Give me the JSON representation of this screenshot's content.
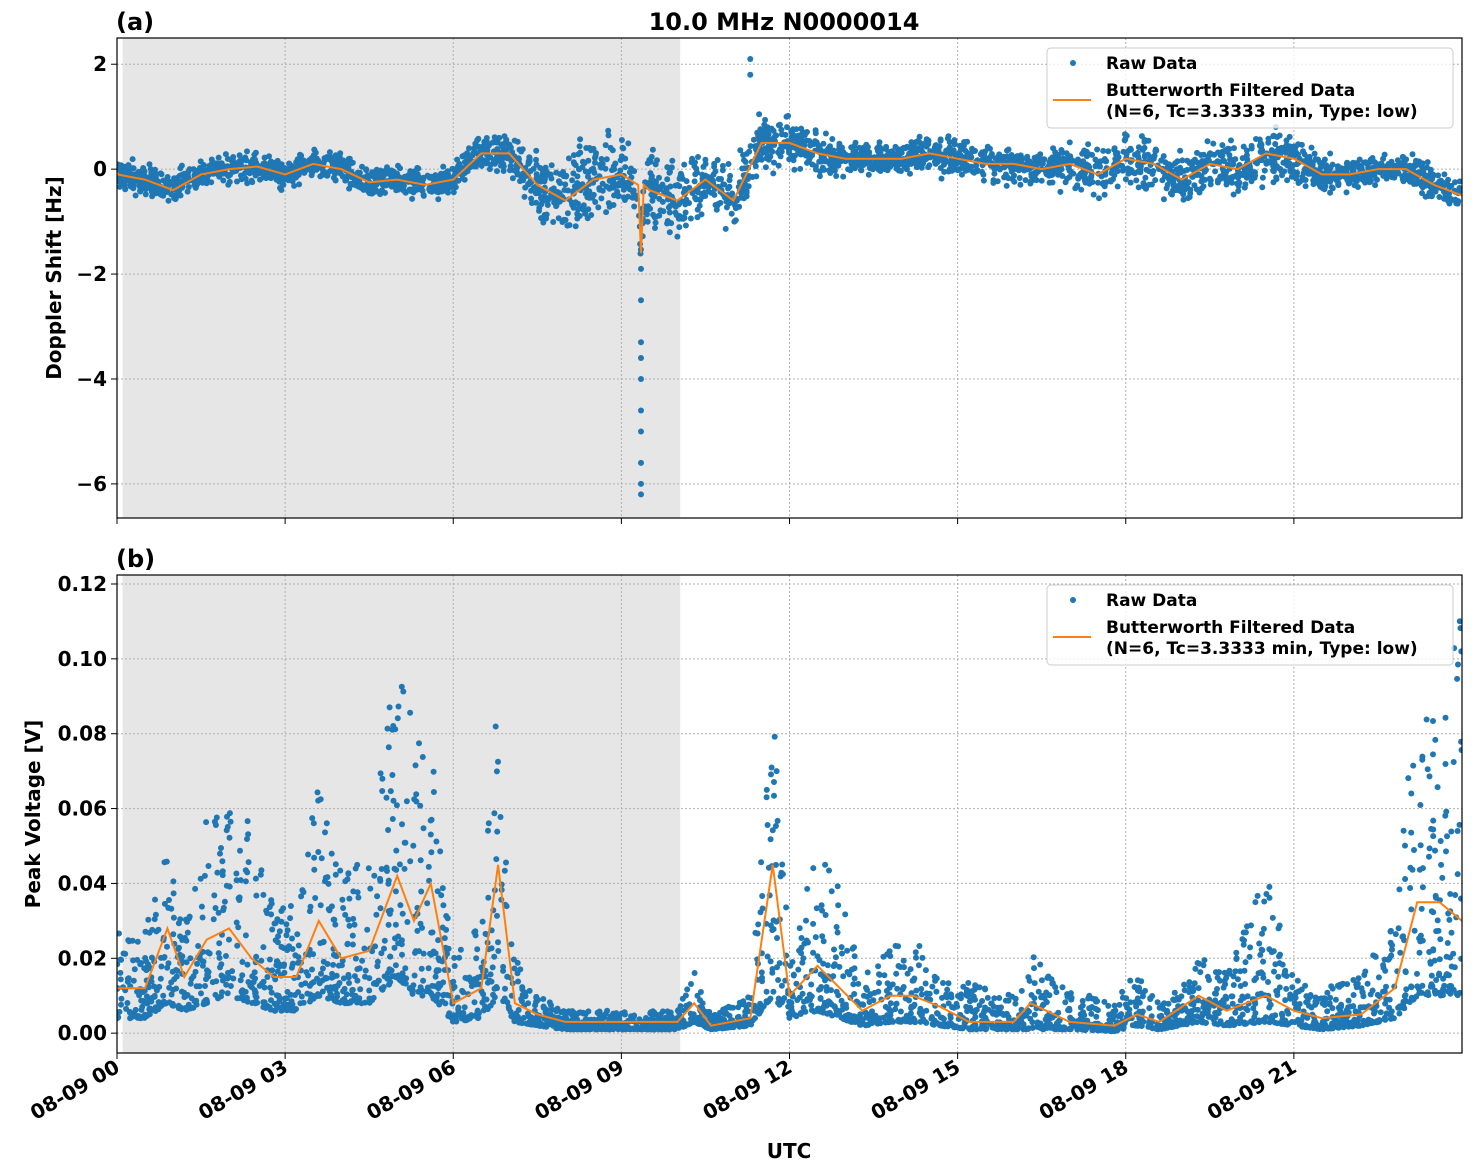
{
  "title": "10.0 MHz N0000014",
  "colors": {
    "raw": "#1f77b4",
    "filtered": "#ff7f0e",
    "shade": "#e6e6e6",
    "grid": "#b0b0b0"
  },
  "legend": {
    "raw": "Raw Data",
    "filtered_line1": "Butterworth Filtered Data",
    "filtered_line2": "(N=6, Tc=3.3333 min, Type: low)",
    "placement": "top-right"
  },
  "xlabel": "UTC",
  "x_ticks": [
    "08-09 00",
    "08-09 03",
    "08-09 06",
    "08-09 09",
    "08-09 12",
    "08-09 15",
    "08-09 18",
    "08-09 21"
  ],
  "chart_data": [
    {
      "type": "scatter",
      "panel_label": "(a)",
      "ylabel": "Doppler Shift [Hz]",
      "x_unit": "hours since 08-09 00 UTC",
      "xlim": [
        0,
        24
      ],
      "ylim": [
        -6.65,
        2.5
      ],
      "y_ticks": [
        "2",
        "0",
        "−2",
        "−4",
        "−6"
      ],
      "y_tick_values": [
        2,
        0,
        -2,
        -4,
        -6
      ],
      "grid": true,
      "shaded_span": [
        0.1,
        10.05
      ],
      "filtered": {
        "x": [
          0,
          0.5,
          1,
          1.5,
          2,
          2.5,
          3,
          3.5,
          4,
          4.5,
          5,
          5.5,
          6,
          6.5,
          7,
          7.5,
          8,
          8.5,
          9,
          9.3,
          9.35,
          9.4,
          9.5,
          10,
          10.5,
          11,
          11.5,
          12,
          12.5,
          13,
          13.5,
          14,
          14.5,
          15,
          15.5,
          16,
          16.5,
          17,
          17.5,
          18,
          18.5,
          19,
          19.5,
          20,
          20.5,
          21,
          21.5,
          22,
          22.5,
          23,
          23.5,
          24
        ],
        "y": [
          -0.1,
          -0.2,
          -0.4,
          -0.1,
          0.0,
          0.05,
          -0.1,
          0.1,
          0.0,
          -0.25,
          -0.2,
          -0.3,
          -0.2,
          0.3,
          0.3,
          -0.3,
          -0.6,
          -0.2,
          -0.1,
          -0.3,
          -1.6,
          -0.3,
          -0.4,
          -0.6,
          -0.2,
          -0.6,
          0.5,
          0.5,
          0.3,
          0.2,
          0.2,
          0.2,
          0.3,
          0.2,
          0.1,
          0.1,
          0.0,
          0.1,
          -0.1,
          0.2,
          0.1,
          -0.2,
          0.1,
          0.0,
          0.3,
          0.2,
          -0.1,
          -0.1,
          0.0,
          0.0,
          -0.3,
          -0.5
        ]
      },
      "raw_half_spread": [
        0.4,
        0.4,
        0.45,
        0.4,
        0.4,
        0.4,
        0.4,
        0.4,
        0.4,
        0.45,
        0.4,
        0.4,
        0.4,
        0.45,
        0.5,
        0.9,
        1.0,
        1.2,
        1.0,
        1.1,
        1.1,
        1.1,
        1.1,
        1.0,
        0.8,
        0.8,
        0.8,
        0.6,
        0.5,
        0.4,
        0.4,
        0.4,
        0.5,
        0.5,
        0.45,
        0.5,
        0.5,
        0.55,
        0.6,
        0.8,
        0.7,
        0.7,
        0.6,
        0.7,
        0.7,
        0.6,
        0.5,
        0.45,
        0.4,
        0.45,
        0.45,
        0.4
      ],
      "raw_outliers": [
        [
          9.35,
          -6.2
        ],
        [
          9.35,
          -6.0
        ],
        [
          9.35,
          -5.6
        ],
        [
          9.35,
          -5.0
        ],
        [
          9.35,
          -4.6
        ],
        [
          9.35,
          -4.0
        ],
        [
          9.35,
          -3.6
        ],
        [
          9.35,
          -3.3
        ],
        [
          9.35,
          -2.5
        ],
        [
          9.35,
          -1.9
        ],
        [
          11.3,
          2.1
        ],
        [
          11.3,
          1.8
        ]
      ]
    },
    {
      "type": "scatter",
      "panel_label": "(b)",
      "ylabel": "Peak Voltage [V]",
      "x_unit": "hours since 08-09 00 UTC",
      "xlim": [
        0,
        24
      ],
      "ylim": [
        -0.0053,
        0.1224
      ],
      "y_ticks": [
        "0.00",
        "0.02",
        "0.04",
        "0.06",
        "0.08",
        "0.10",
        "0.12"
      ],
      "y_tick_values": [
        0,
        0.02,
        0.04,
        0.06,
        0.08,
        0.1,
        0.12
      ],
      "grid": true,
      "shaded_span": [
        0.1,
        10.05
      ],
      "filtered": {
        "x": [
          0,
          0.5,
          0.9,
          1.2,
          1.6,
          2,
          2.4,
          2.8,
          3.2,
          3.6,
          4,
          4.5,
          5,
          5.3,
          5.6,
          6,
          6.5,
          6.8,
          7.1,
          7.5,
          8,
          9,
          10,
          10.3,
          10.6,
          11.3,
          11.7,
          12,
          12.5,
          12.9,
          13.3,
          13.8,
          14.2,
          14.7,
          15.2,
          16,
          16.3,
          17,
          17.8,
          18.2,
          18.6,
          19.3,
          19.8,
          20.5,
          21,
          21.5,
          22.2,
          22.8,
          23.2,
          23.6,
          24
        ],
        "y": [
          0.012,
          0.012,
          0.028,
          0.015,
          0.025,
          0.028,
          0.02,
          0.015,
          0.015,
          0.03,
          0.02,
          0.022,
          0.042,
          0.03,
          0.04,
          0.008,
          0.012,
          0.045,
          0.008,
          0.005,
          0.003,
          0.003,
          0.003,
          0.008,
          0.002,
          0.004,
          0.045,
          0.01,
          0.018,
          0.012,
          0.006,
          0.01,
          0.01,
          0.007,
          0.003,
          0.003,
          0.008,
          0.003,
          0.002,
          0.005,
          0.003,
          0.01,
          0.006,
          0.01,
          0.006,
          0.004,
          0.005,
          0.012,
          0.035,
          0.035,
          0.03
        ]
      },
      "raw_low": [
        0.004,
        0.004,
        0.008,
        0.006,
        0.008,
        0.01,
        0.008,
        0.006,
        0.006,
        0.01,
        0.008,
        0.008,
        0.015,
        0.01,
        0.01,
        0.003,
        0.004,
        0.01,
        0.003,
        0.002,
        0.001,
        0.001,
        0.001,
        0.003,
        0.001,
        0.002,
        0.01,
        0.004,
        0.006,
        0.004,
        0.002,
        0.003,
        0.003,
        0.002,
        0.001,
        0.001,
        0.001,
        0.001,
        0.0005,
        0.002,
        0.001,
        0.003,
        0.002,
        0.003,
        0.002,
        0.001,
        0.002,
        0.004,
        0.01,
        0.01,
        0.01
      ],
      "raw_high": [
        0.028,
        0.028,
        0.05,
        0.03,
        0.06,
        0.06,
        0.06,
        0.035,
        0.035,
        0.068,
        0.045,
        0.045,
        0.112,
        0.08,
        0.078,
        0.02,
        0.03,
        0.094,
        0.02,
        0.01,
        0.006,
        0.006,
        0.006,
        0.017,
        0.005,
        0.01,
        0.089,
        0.02,
        0.052,
        0.038,
        0.015,
        0.027,
        0.026,
        0.015,
        0.015,
        0.01,
        0.021,
        0.012,
        0.008,
        0.017,
        0.008,
        0.022,
        0.016,
        0.043,
        0.015,
        0.012,
        0.015,
        0.035,
        0.092,
        0.08,
        0.117
      ]
    }
  ]
}
